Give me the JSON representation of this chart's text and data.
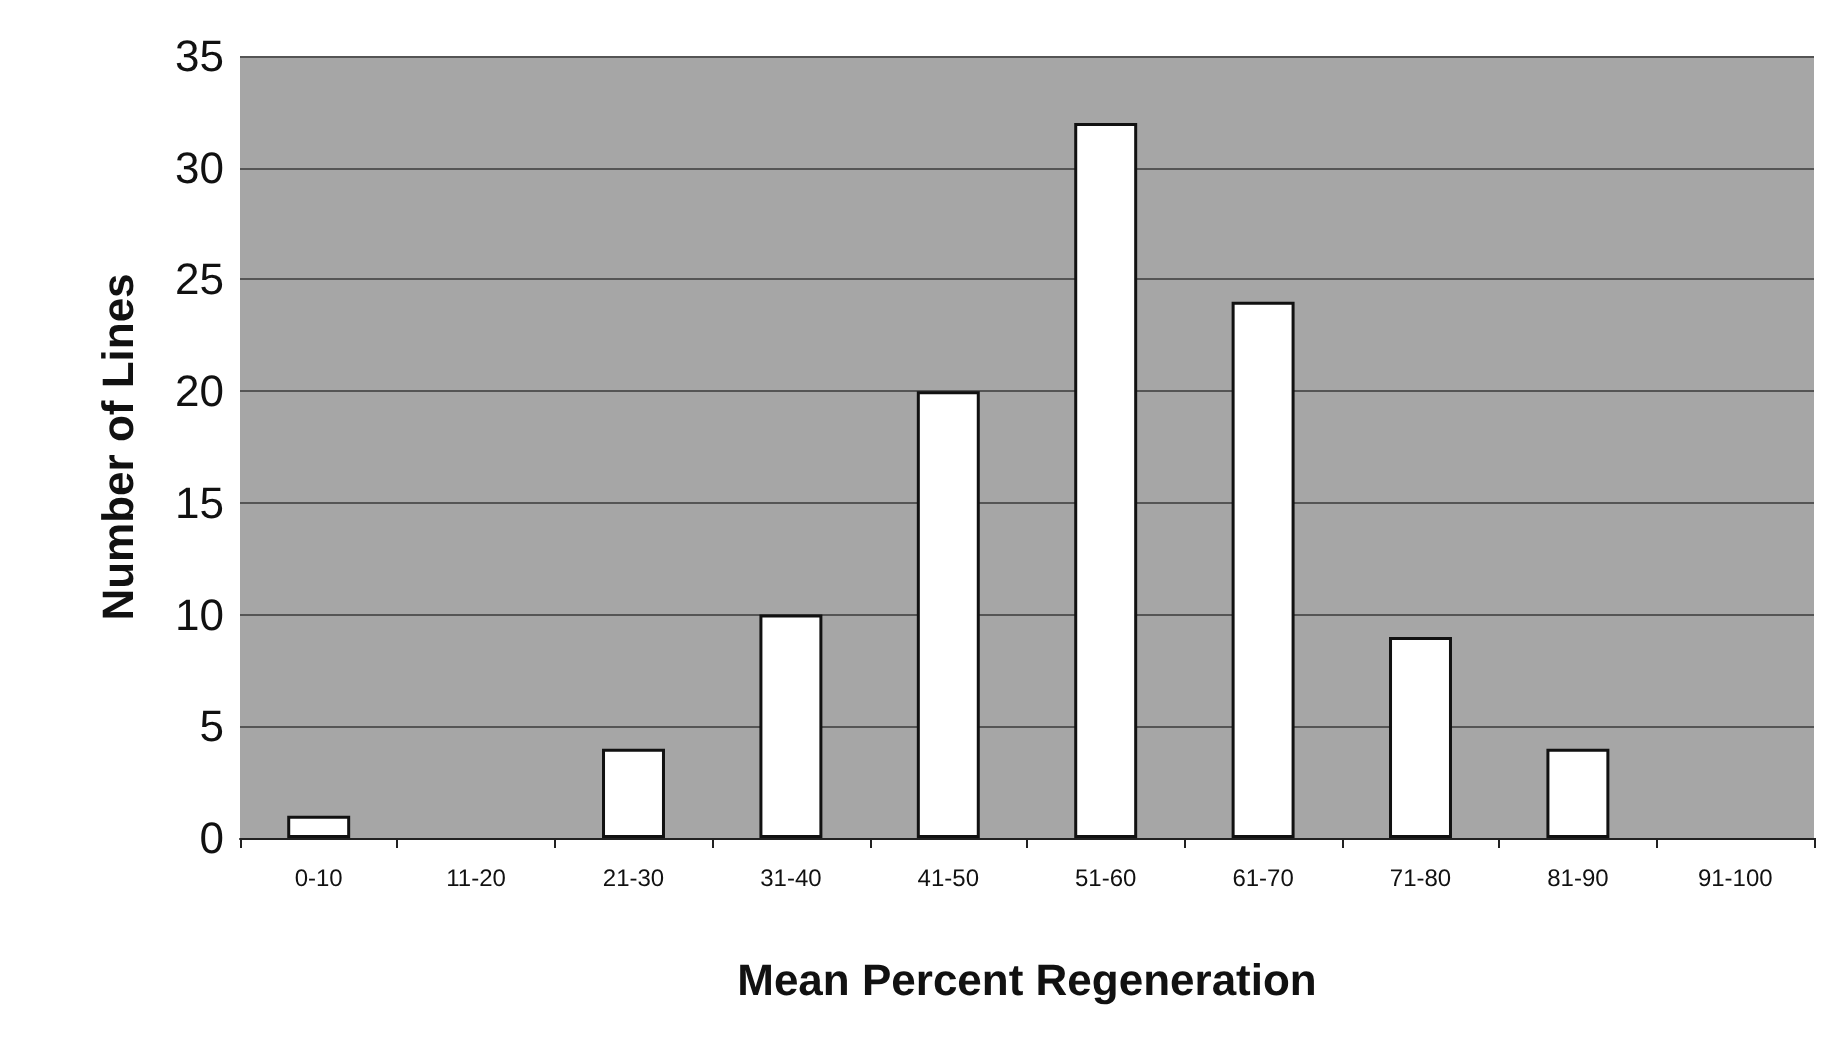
{
  "chart_data": {
    "type": "bar",
    "xlabel": "Mean Percent Regeneration",
    "ylabel": "Number of Lines",
    "categories": [
      "0-10",
      "11-20",
      "21-30",
      "31-40",
      "41-50",
      "51-60",
      "61-70",
      "71-80",
      "81-90",
      "91-100"
    ],
    "values": [
      1,
      0,
      4,
      10,
      20,
      32,
      24,
      9,
      4,
      0
    ],
    "color": "#ffffff",
    "ylim": [
      0,
      35
    ],
    "yticks": [
      0,
      5,
      10,
      15,
      20,
      25,
      30,
      35
    ],
    "grid": "y"
  }
}
